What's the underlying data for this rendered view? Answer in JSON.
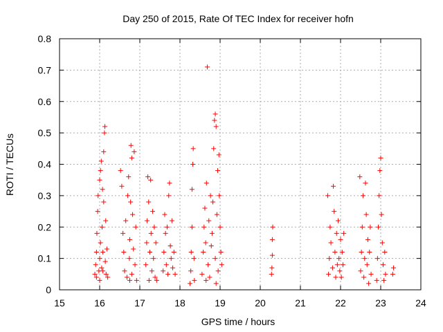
{
  "chart_data": {
    "type": "scatter",
    "title": "Day 250 of 2015, Rate Of TEC Index for receiver hofn",
    "xlabel": "GPS time / hours",
    "ylabel": "ROTI / TECUs",
    "xlim": [
      15,
      24
    ],
    "ylim": [
      0,
      0.8
    ],
    "xticks": [
      "15",
      "16",
      "17",
      "18",
      "19",
      "20",
      "21",
      "22",
      "23",
      "24"
    ],
    "yticks": [
      "0",
      "0.1",
      "0.2",
      "0.3",
      "0.4",
      "0.5",
      "0.6",
      "0.7",
      "0.8"
    ],
    "grid": true,
    "marker": "+",
    "color": "#ff0000",
    "series": [
      {
        "name": "",
        "points": [
          [
            15.88,
            0.05
          ],
          [
            15.9,
            0.08
          ],
          [
            15.92,
            0.12
          ],
          [
            15.93,
            0.18
          ],
          [
            15.95,
            0.25
          ],
          [
            15.96,
            0.3
          ],
          [
            15.98,
            0.06
          ],
          [
            16.0,
            0.1
          ],
          [
            16.0,
            0.35
          ],
          [
            16.02,
            0.38
          ],
          [
            16.02,
            0.15
          ],
          [
            16.04,
            0.41
          ],
          [
            16.05,
            0.07
          ],
          [
            16.06,
            0.2
          ],
          [
            16.07,
            0.32
          ],
          [
            16.08,
            0.12
          ],
          [
            16.1,
            0.28
          ],
          [
            16.1,
            0.44
          ],
          [
            16.12,
            0.5
          ],
          [
            16.13,
            0.52
          ],
          [
            16.14,
            0.09
          ],
          [
            16.15,
            0.22
          ],
          [
            16.16,
            0.05
          ],
          [
            16.18,
            0.13
          ],
          [
            16.2,
            0.04
          ],
          [
            16.0,
            0.03
          ],
          [
            15.92,
            0.04
          ],
          [
            16.08,
            0.06
          ],
          [
            16.52,
            0.38
          ],
          [
            16.55,
            0.33
          ],
          [
            16.58,
            0.18
          ],
          [
            16.6,
            0.12
          ],
          [
            16.62,
            0.06
          ],
          [
            16.65,
            0.22
          ],
          [
            16.68,
            0.04
          ],
          [
            16.7,
            0.3
          ],
          [
            16.72,
            0.36
          ],
          [
            16.74,
            0.1
          ],
          [
            16.75,
            0.16
          ],
          [
            16.77,
            0.28
          ],
          [
            16.78,
            0.46
          ],
          [
            16.8,
            0.42
          ],
          [
            16.8,
            0.05
          ],
          [
            16.82,
            0.24
          ],
          [
            16.84,
            0.13
          ],
          [
            16.86,
            0.44
          ],
          [
            16.88,
            0.08
          ],
          [
            16.9,
            0.2
          ],
          [
            16.92,
            0.03
          ],
          [
            16.75,
            0.03
          ],
          [
            17.15,
            0.08
          ],
          [
            17.17,
            0.15
          ],
          [
            17.18,
            0.22
          ],
          [
            17.2,
            0.36
          ],
          [
            17.22,
            0.28
          ],
          [
            17.23,
            0.03
          ],
          [
            17.25,
            0.12
          ],
          [
            17.27,
            0.35
          ],
          [
            17.28,
            0.18
          ],
          [
            17.3,
            0.06
          ],
          [
            17.32,
            0.25
          ],
          [
            17.34,
            0.1
          ],
          [
            17.36,
            0.2
          ],
          [
            17.38,
            0.04
          ],
          [
            17.4,
            0.15
          ],
          [
            17.42,
            0.03
          ],
          [
            17.58,
            0.06
          ],
          [
            17.6,
            0.12
          ],
          [
            17.62,
            0.24
          ],
          [
            17.64,
            0.18
          ],
          [
            17.66,
            0.08
          ],
          [
            17.68,
            0.2
          ],
          [
            17.7,
            0.05
          ],
          [
            17.72,
            0.3
          ],
          [
            17.74,
            0.34
          ],
          [
            17.76,
            0.14
          ],
          [
            17.78,
            0.1
          ],
          [
            17.8,
            0.22
          ],
          [
            17.82,
            0.07
          ],
          [
            17.85,
            0.12
          ],
          [
            17.88,
            0.05
          ],
          [
            18.25,
            0.02
          ],
          [
            18.27,
            0.06
          ],
          [
            18.28,
            0.12
          ],
          [
            18.3,
            0.2
          ],
          [
            18.3,
            0.32
          ],
          [
            18.32,
            0.4
          ],
          [
            18.33,
            0.45
          ],
          [
            18.35,
            0.1
          ],
          [
            18.36,
            0.03
          ],
          [
            18.55,
            0.05
          ],
          [
            18.58,
            0.12
          ],
          [
            18.6,
            0.2
          ],
          [
            18.62,
            0.26
          ],
          [
            18.64,
            0.15
          ],
          [
            18.66,
            0.34
          ],
          [
            18.68,
            0.71
          ],
          [
            18.7,
            0.08
          ],
          [
            18.72,
            0.22
          ],
          [
            18.74,
            0.04
          ],
          [
            18.76,
            0.3
          ],
          [
            18.78,
            0.14
          ],
          [
            18.8,
            0.18
          ],
          [
            18.82,
            0.28
          ],
          [
            18.84,
            0.45
          ],
          [
            18.86,
            0.54
          ],
          [
            18.88,
            0.56
          ],
          [
            18.88,
            0.1
          ],
          [
            18.9,
            0.52
          ],
          [
            18.92,
            0.24
          ],
          [
            18.94,
            0.38
          ],
          [
            18.95,
            0.06
          ],
          [
            18.97,
            0.43
          ],
          [
            18.98,
            0.3
          ],
          [
            19.0,
            0.2
          ],
          [
            19.02,
            0.12
          ],
          [
            19.04,
            0.08
          ],
          [
            18.9,
            0.02
          ],
          [
            18.65,
            0.03
          ],
          [
            20.28,
            0.05
          ],
          [
            20.29,
            0.07
          ],
          [
            20.3,
            0.11
          ],
          [
            20.3,
            0.16
          ],
          [
            20.31,
            0.2
          ],
          [
            21.68,
            0.3
          ],
          [
            21.7,
            0.05
          ],
          [
            21.72,
            0.1
          ],
          [
            21.74,
            0.2
          ],
          [
            21.76,
            0.15
          ],
          [
            21.8,
            0.07
          ],
          [
            21.82,
            0.33
          ],
          [
            21.84,
            0.25
          ],
          [
            21.86,
            0.12
          ],
          [
            21.88,
            0.04
          ],
          [
            21.9,
            0.18
          ],
          [
            21.92,
            0.08
          ],
          [
            21.94,
            0.22
          ],
          [
            21.96,
            0.1
          ],
          [
            21.98,
            0.06
          ],
          [
            22.0,
            0.16
          ],
          [
            22.02,
            0.04
          ],
          [
            22.04,
            0.12
          ],
          [
            22.06,
            0.08
          ],
          [
            22.08,
            0.18
          ],
          [
            22.48,
            0.36
          ],
          [
            22.5,
            0.06
          ],
          [
            22.52,
            0.12
          ],
          [
            22.54,
            0.2
          ],
          [
            22.56,
            0.3
          ],
          [
            22.58,
            0.04
          ],
          [
            22.6,
            0.1
          ],
          [
            22.62,
            0.34
          ],
          [
            22.64,
            0.24
          ],
          [
            22.66,
            0.08
          ],
          [
            22.68,
            0.16
          ],
          [
            22.7,
            0.02
          ],
          [
            22.72,
            0.12
          ],
          [
            22.74,
            0.2
          ],
          [
            22.76,
            0.05
          ],
          [
            22.9,
            0.03
          ],
          [
            22.92,
            0.1
          ],
          [
            22.94,
            0.2
          ],
          [
            22.96,
            0.3
          ],
          [
            22.98,
            0.38
          ],
          [
            23.0,
            0.42
          ],
          [
            23.02,
            0.24
          ],
          [
            23.04,
            0.15
          ],
          [
            23.06,
            0.08
          ],
          [
            23.08,
            0.03
          ],
          [
            23.1,
            0.12
          ],
          [
            23.12,
            0.05
          ],
          [
            23.3,
            0.05
          ],
          [
            23.32,
            0.07
          ]
        ]
      }
    ]
  }
}
